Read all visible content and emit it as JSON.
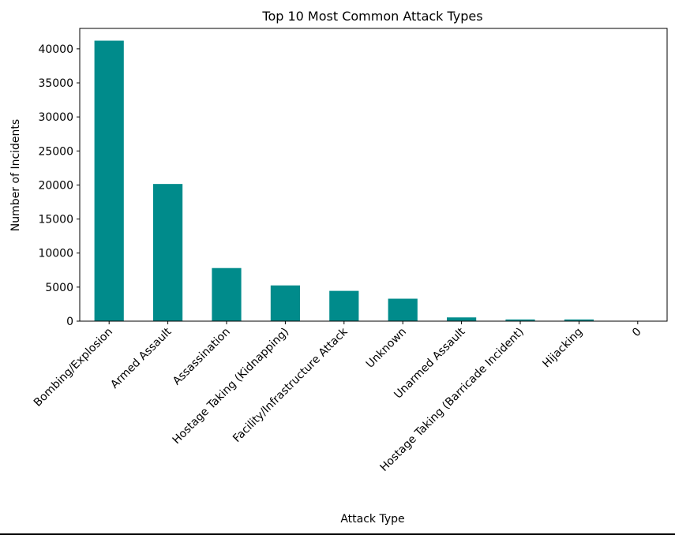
{
  "chart_data": {
    "type": "bar",
    "title": "Top 10 Most Common Attack Types",
    "xlabel": "Attack Type",
    "ylabel": "Number of Incidents",
    "categories": [
      "Bombing/Explosion",
      "Armed Assault",
      "Assassination",
      "Hostage Taking (Kidnapping)",
      "Facility/Infrastructure Attack",
      "Unknown",
      "Unarmed Assault",
      "Hostage Taking (Barricade Incident)",
      "Hijacking",
      "0"
    ],
    "values": [
      41200,
      20150,
      7800,
      5250,
      4450,
      3300,
      550,
      250,
      250,
      0
    ],
    "ylim": [
      0,
      43000
    ],
    "yticks": [
      0,
      5000,
      10000,
      15000,
      20000,
      25000,
      30000,
      35000,
      40000
    ],
    "bar_color": "#008b8b",
    "grid": false,
    "legend": "none"
  }
}
